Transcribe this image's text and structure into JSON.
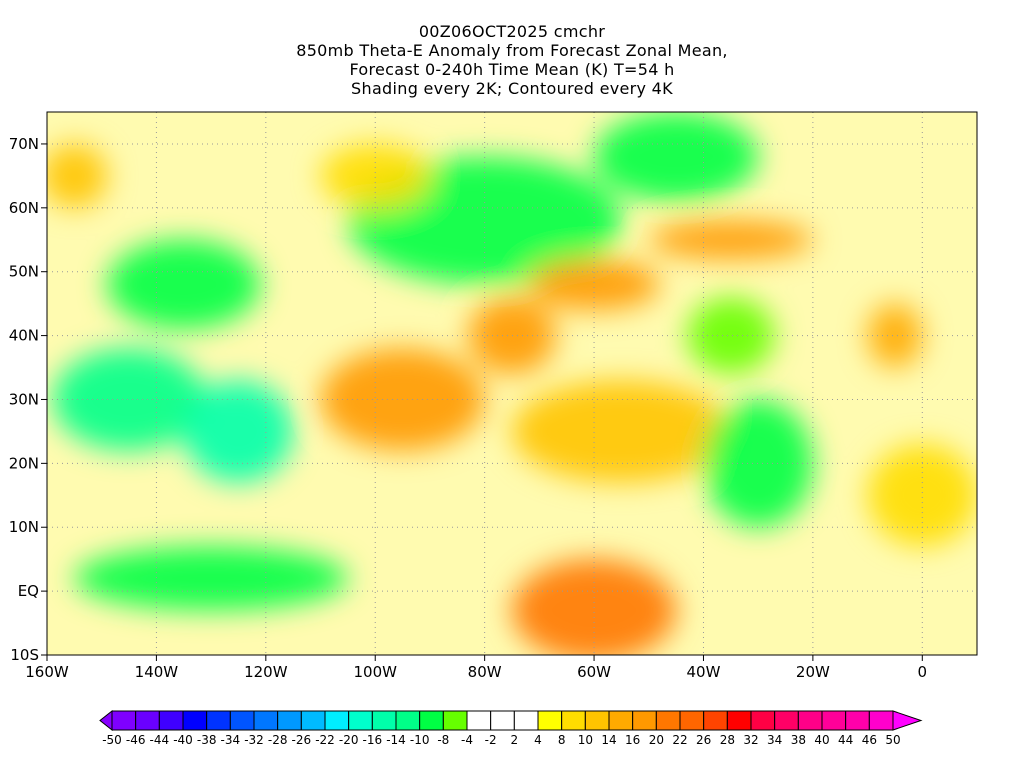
{
  "chart_data": {
    "type": "heatmap",
    "title": [
      "00Z06OCT2025 cmchr",
      "850mb Theta-E Anomaly from Forecast Zonal Mean,",
      "Forecast 0-240h Time Mean (K) T=54 h",
      "Shading every 2K; Contoured every 4K"
    ],
    "xlabel": "",
    "ylabel": "",
    "xlim": [
      -160,
      10
    ],
    "ylim": [
      -10,
      75
    ],
    "x_ticks": [
      {
        "v": -160,
        "label": "160W"
      },
      {
        "v": -140,
        "label": "140W"
      },
      {
        "v": -120,
        "label": "120W"
      },
      {
        "v": -100,
        "label": "100W"
      },
      {
        "v": -80,
        "label": "80W"
      },
      {
        "v": -60,
        "label": "60W"
      },
      {
        "v": -40,
        "label": "40W"
      },
      {
        "v": -20,
        "label": "20W"
      },
      {
        "v": 0,
        "label": "0"
      }
    ],
    "y_ticks": [
      {
        "v": -10,
        "label": "10S"
      },
      {
        "v": 0,
        "label": "EQ"
      },
      {
        "v": 10,
        "label": "10N"
      },
      {
        "v": 20,
        "label": "20N"
      },
      {
        "v": 30,
        "label": "30N"
      },
      {
        "v": 40,
        "label": "40N"
      },
      {
        "v": 50,
        "label": "50N"
      },
      {
        "v": 60,
        "label": "60N"
      },
      {
        "v": 70,
        "label": "70N"
      }
    ],
    "grid": true,
    "colorbar": {
      "labels": [
        "-50",
        "-46",
        "-44",
        "-40",
        "-38",
        "-34",
        "-32",
        "-28",
        "-26",
        "-22",
        "-20",
        "-16",
        "-14",
        "-10",
        "-8",
        "-4",
        "-2",
        "2",
        "4",
        "8",
        "10",
        "14",
        "16",
        "20",
        "22",
        "26",
        "28",
        "32",
        "34",
        "38",
        "40",
        "44",
        "46",
        "50"
      ],
      "colors": [
        "#7f00ff",
        "#6a00ff",
        "#3f00ff",
        "#0000ff",
        "#0033ff",
        "#0055ff",
        "#0077ff",
        "#0099ff",
        "#00bbff",
        "#00eeff",
        "#00ffcc",
        "#00ffaa",
        "#00ff88",
        "#00ff44",
        "#66ff00",
        "#ffffff",
        "#ffffff",
        "#ffffff",
        "#ffff00",
        "#ffdd00",
        "#ffc400",
        "#ffaa00",
        "#ff9900",
        "#ff7700",
        "#ff6600",
        "#ff4400",
        "#ff0000",
        "#ff0044",
        "#ff0066",
        "#ff0088",
        "#ff0099",
        "#ff00aa",
        "#ff00cc"
      ],
      "under_color": "#8800ff",
      "over_color": "#ff00ff"
    },
    "anomaly_regions": [
      {
        "lon": -80,
        "lat": 58,
        "rlon": 25,
        "rlat": 10,
        "value": -10
      },
      {
        "lon": -45,
        "lat": 68,
        "rlon": 15,
        "rlat": 7,
        "value": -10
      },
      {
        "lon": -135,
        "lat": 48,
        "rlon": 14,
        "rlat": 7,
        "value": -10
      },
      {
        "lon": -145,
        "lat": 30,
        "rlon": 14,
        "rlat": 8,
        "value": -12
      },
      {
        "lon": -125,
        "lat": 25,
        "rlon": 10,
        "rlat": 8,
        "value": -16
      },
      {
        "lon": -130,
        "lat": 2,
        "rlon": 25,
        "rlat": 5,
        "value": -10
      },
      {
        "lon": -95,
        "lat": 30,
        "rlon": 15,
        "rlat": 8,
        "value": 16
      },
      {
        "lon": -75,
        "lat": 40,
        "rlon": 8,
        "rlat": 6,
        "value": 16
      },
      {
        "lon": -60,
        "lat": 48,
        "rlon": 12,
        "rlat": 4,
        "value": 16
      },
      {
        "lon": -35,
        "lat": 55,
        "rlon": 15,
        "rlat": 3,
        "value": 16
      },
      {
        "lon": -55,
        "lat": 25,
        "rlon": 20,
        "rlat": 8,
        "value": 10
      },
      {
        "lon": -60,
        "lat": -3,
        "rlon": 15,
        "rlat": 8,
        "value": 20
      },
      {
        "lon": -30,
        "lat": 20,
        "rlon": 10,
        "rlat": 10,
        "value": -10
      },
      {
        "lon": -35,
        "lat": 40,
        "rlon": 8,
        "rlat": 6,
        "value": -8
      },
      {
        "lon": -5,
        "lat": 40,
        "rlon": 5,
        "rlat": 5,
        "value": 14
      },
      {
        "lon": 0,
        "lat": 15,
        "rlon": 10,
        "rlat": 8,
        "value": 8
      },
      {
        "lon": -155,
        "lat": 65,
        "rlon": 6,
        "rlat": 5,
        "value": 12
      },
      {
        "lon": -100,
        "lat": 65,
        "rlon": 10,
        "rlat": 5,
        "value": 8
      }
    ]
  }
}
